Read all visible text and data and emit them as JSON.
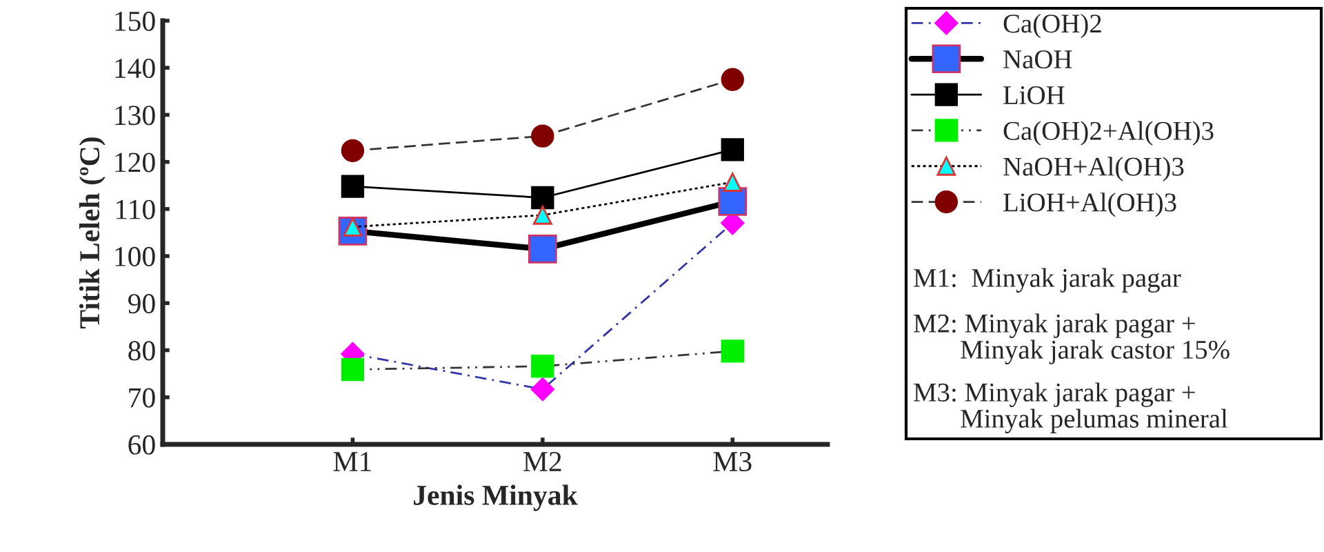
{
  "chart_data": {
    "type": "line",
    "xlabel": "Jenis Minyak",
    "ylabel": "Titik Leleh (ºC)",
    "categories": [
      "M1",
      "M2",
      "M3"
    ],
    "ylim": [
      60,
      150
    ],
    "yticks": [
      60,
      70,
      80,
      90,
      100,
      110,
      120,
      130,
      140,
      150
    ],
    "grid": false,
    "legend": "right",
    "series": [
      {
        "name": "Ca(OH)2",
        "color": "#ff00ff",
        "marker": "diamond",
        "line_style": "dashdot",
        "values": [
          79.2,
          71.7,
          107
        ]
      },
      {
        "name": "NaOH",
        "color": "#3366ff",
        "marker": "square",
        "line_style": "solid",
        "values": [
          105.3,
          101.5,
          111.6
        ]
      },
      {
        "name": "LiOH",
        "color": "#000000",
        "marker": "square",
        "line_style": "solid",
        "values": [
          114.8,
          112.4,
          122.6
        ]
      },
      {
        "name": "Ca(OH)2+Al(OH)3",
        "color": "#00ee00",
        "marker": "square",
        "line_style": "dashdotdot",
        "values": [
          75.9,
          76.6,
          79.8
        ]
      },
      {
        "name": "NaOH+Al(OH)3",
        "color": "#00ffff",
        "marker": "triangle",
        "line_style": "dotted",
        "values": [
          106.2,
          108.7,
          115.7
        ]
      },
      {
        "name": "LiOH+Al(OH)3",
        "color": "#800000",
        "marker": "circle",
        "line_style": "dashed",
        "values": [
          122.4,
          125.5,
          137.5
        ]
      }
    ],
    "annotations": [
      "M1:  Minyak jarak pagar",
      "M2: Minyak jarak pagar +\n       Minyak jarak castor 15%",
      "M3: Minyak jarak pagar +\n       Minyak pelumas mineral"
    ]
  }
}
